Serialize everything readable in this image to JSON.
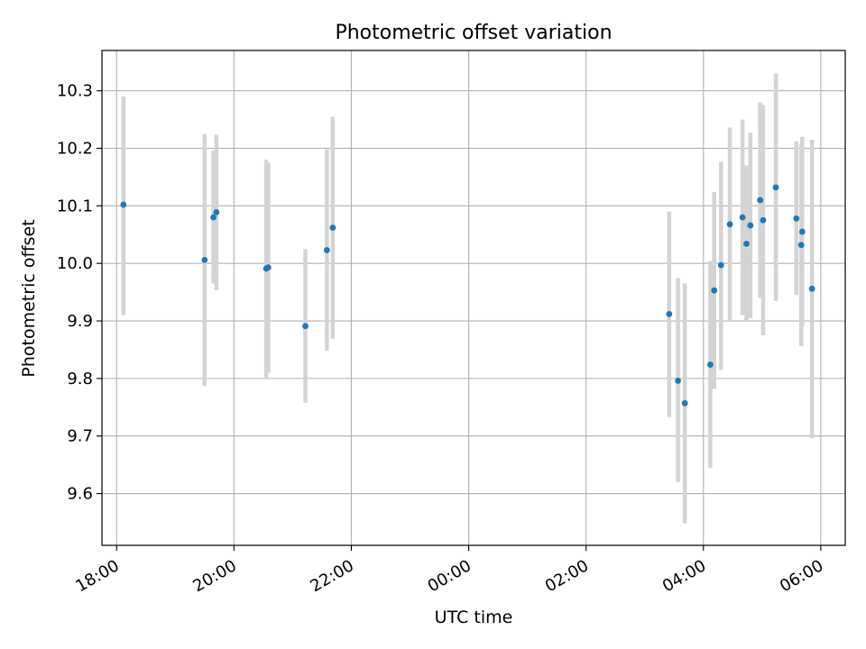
{
  "chart_data": {
    "type": "scatter",
    "title": "Photometric offset variation",
    "xlabel": "UTC time",
    "ylabel": "Photometric offset",
    "xlim": [
      "17:45",
      "06:25"
    ],
    "ylim": [
      9.51,
      10.37
    ],
    "x_ticks": [
      "18:00",
      "20:00",
      "22:00",
      "00:00",
      "02:00",
      "04:00",
      "06:00"
    ],
    "y_ticks": [
      9.6,
      9.7,
      9.8,
      9.9,
      10.0,
      10.1,
      10.2,
      10.3
    ],
    "y_tick_labels": [
      "9.6",
      "9.7",
      "9.8",
      "9.9",
      "10.0",
      "10.1",
      "10.2",
      "10.3"
    ],
    "grid": true,
    "colors": {
      "marker": "#1f77b4",
      "errorbar": "#d3d3d3",
      "grid": "#b0b0b0"
    },
    "points": [
      {
        "x": "18:07",
        "y": 10.102,
        "low": 9.91,
        "high": 10.29
      },
      {
        "x": "19:30",
        "y": 10.006,
        "low": 9.787,
        "high": 10.225
      },
      {
        "x": "19:39",
        "y": 10.08,
        "low": 9.965,
        "high": 10.196
      },
      {
        "x": "19:42",
        "y": 10.089,
        "low": 9.954,
        "high": 10.224
      },
      {
        "x": "20:33",
        "y": 9.991,
        "low": 9.8,
        "high": 10.18
      },
      {
        "x": "20:35",
        "y": 9.993,
        "low": 9.81,
        "high": 10.175
      },
      {
        "x": "21:13",
        "y": 9.891,
        "low": 9.758,
        "high": 10.025
      },
      {
        "x": "21:35",
        "y": 10.023,
        "low": 9.848,
        "high": 10.198
      },
      {
        "x": "21:41",
        "y": 10.062,
        "low": 9.869,
        "high": 10.255
      },
      {
        "x": "03:25",
        "y": 9.912,
        "low": 9.733,
        "high": 10.09
      },
      {
        "x": "03:34",
        "y": 9.796,
        "low": 9.62,
        "high": 9.974
      },
      {
        "x": "03:41",
        "y": 9.757,
        "low": 9.548,
        "high": 9.965
      },
      {
        "x": "04:07",
        "y": 9.824,
        "low": 9.645,
        "high": 10.004
      },
      {
        "x": "04:11",
        "y": 9.953,
        "low": 9.782,
        "high": 10.124
      },
      {
        "x": "04:18",
        "y": 9.997,
        "low": 9.815,
        "high": 10.177
      },
      {
        "x": "04:27",
        "y": 10.068,
        "low": 9.9,
        "high": 10.236
      },
      {
        "x": "04:40",
        "y": 10.08,
        "low": 9.91,
        "high": 10.25
      },
      {
        "x": "04:44",
        "y": 10.034,
        "low": 9.9,
        "high": 10.17
      },
      {
        "x": "04:48",
        "y": 10.066,
        "low": 9.905,
        "high": 10.227
      },
      {
        "x": "04:58",
        "y": 10.11,
        "low": 9.94,
        "high": 10.28
      },
      {
        "x": "05:01",
        "y": 10.075,
        "low": 9.875,
        "high": 10.275
      },
      {
        "x": "05:14",
        "y": 10.132,
        "low": 9.935,
        "high": 10.33
      },
      {
        "x": "05:35",
        "y": 10.078,
        "low": 9.945,
        "high": 10.212
      },
      {
        "x": "05:40",
        "y": 10.032,
        "low": 9.856,
        "high": 10.208
      },
      {
        "x": "05:41",
        "y": 10.055,
        "low": 9.89,
        "high": 10.22
      },
      {
        "x": "05:51",
        "y": 9.956,
        "low": 9.696,
        "high": 10.215
      }
    ]
  }
}
